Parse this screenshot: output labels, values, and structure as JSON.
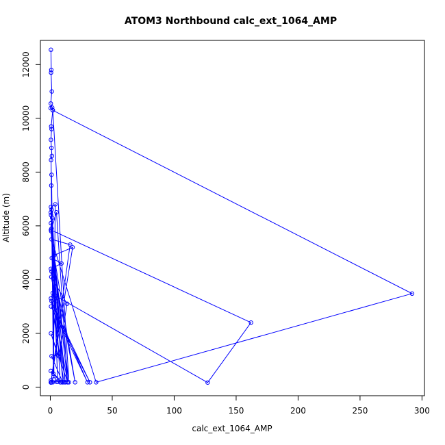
{
  "chart_data": {
    "type": "line",
    "title": "ATOM3 Northbound calc_ext_1064_AMP",
    "xlabel": "calc_ext_1064_AMP",
    "ylabel": "Altitude (m)",
    "xlim": [
      -8,
      302
    ],
    "ylim": [
      -320,
      12900
    ],
    "x_ticks": [
      0,
      50,
      100,
      150,
      200,
      250,
      300
    ],
    "y_ticks": [
      0,
      2000,
      4000,
      6000,
      8000,
      10000,
      12000
    ],
    "x_tick_labels": [
      "0",
      "50",
      "100",
      "150",
      "200",
      "250",
      "300"
    ],
    "y_tick_labels": [
      "0",
      "2000",
      "4000",
      "6000",
      "8000",
      "10000",
      "12000"
    ],
    "grid": false,
    "legend": "none",
    "color": "#0000ff",
    "marker": "open-circle",
    "series": [
      {
        "x": [
          0.5,
          0.8,
          0.6,
          1.2,
          0.4,
          1.5,
          0.3,
          2.0,
          0.7,
          1.0,
          0.5,
          0.9,
          1.3,
          0.6,
          3.0,
          1.0,
          0.8,
          2.5,
          4.0,
          0.5,
          6.0,
          1.1,
          0.4,
          8.0,
          0.6,
          1.5,
          10.0,
          0.5,
          12.0,
          1.0,
          5.0,
          14.0,
          0.7,
          15.0,
          2.0,
          292.0,
          37.0,
          1.0,
          16.0,
          0.5,
          18.0,
          3.0,
          20.0,
          1.2,
          9.0,
          0.5,
          12.0,
          1.0,
          7.0,
          13.5,
          0.8,
          4.5,
          0.5,
          162.0,
          127.0,
          4.0,
          2.0,
          0.5,
          11.0,
          1.0,
          30.0,
          0.6,
          32.0,
          3.5,
          14.0,
          0.5,
          6.0,
          1.0,
          10.0,
          0.4,
          8.5,
          0.5,
          2.0,
          5.0,
          1.0,
          0.5
        ],
        "y": [
          12550,
          11800,
          11700,
          11000,
          10550,
          10400,
          10380,
          10300,
          9700,
          9600,
          9200,
          8900,
          8600,
          8450,
          300,
          7900,
          7500,
          500,
          6800,
          6700,
          200,
          6600,
          6500,
          180,
          6400,
          6300,
          180,
          6100,
          180,
          5900,
          6500,
          180,
          5800,
          180,
          10300,
          3480,
          180,
          5500,
          5300,
          180,
          5200,
          4900,
          180,
          4800,
          4600,
          4400,
          180,
          4300,
          1150,
          3100,
          4100,
          3200,
          5850,
          2400,
          170,
          3400,
          3500,
          3300,
          180,
          3200,
          180,
          3000,
          180,
          2900,
          180,
          2000,
          1200,
          1150,
          180,
          600,
          180,
          250,
          180,
          200,
          180,
          170
        ]
      }
    ]
  }
}
